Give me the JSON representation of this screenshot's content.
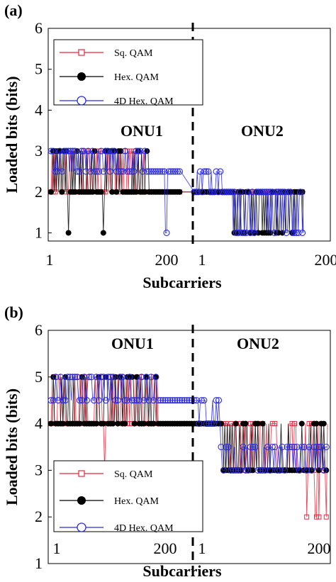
{
  "chart_data": [
    {
      "type": "line",
      "panel_label": "(a)",
      "xlabel": "Subcarriers",
      "ylabel": "Loaded bits (bits)",
      "ylim": [
        0.8,
        6
      ],
      "yticks": [
        "1",
        "2",
        "3",
        "4",
        "5",
        "6"
      ],
      "xticks_left": [
        "1",
        "200"
      ],
      "xticks_right": [
        "1",
        "200"
      ],
      "region_labels": [
        "ONU1",
        "ONU2"
      ],
      "legend": {
        "position": "top-left",
        "entries": [
          "Sq. QAM",
          "Hex. QAM",
          "4D Hex. QAM"
        ]
      },
      "series": [
        {
          "name": "Sq. QAM",
          "color": "#e8283c",
          "marker": "open-square",
          "onu1_level": 2,
          "onu1_peak": 3,
          "onu2_level": 2
        },
        {
          "name": "Hex. QAM",
          "color": "#000000",
          "marker": "filled-circle",
          "onu1_level": 2,
          "onu1_peak": 3,
          "onu2_level": 2,
          "onu2_drop": 1
        },
        {
          "name": "4D Hex. QAM",
          "color": "#2a2ae0",
          "marker": "open-circle",
          "onu1_level": 2.5,
          "onu1_peak": 3,
          "onu2_level": 2,
          "onu2_drop": 1
        }
      ]
    },
    {
      "type": "line",
      "panel_label": "(b)",
      "xlabel": "Subcarriers",
      "ylabel": "Loaded bits (bits)",
      "ylim": [
        1,
        6
      ],
      "yticks": [
        "1",
        "2",
        "3",
        "4",
        "5",
        "6"
      ],
      "xticks_left": [
        "1",
        "200"
      ],
      "xticks_right": [
        "1",
        "200"
      ],
      "region_labels": [
        "ONU1",
        "ONU2"
      ],
      "legend": {
        "position": "bottom-left",
        "entries": [
          "Sq. QAM",
          "Hex. QAM",
          "4D Hex. QAM"
        ]
      },
      "series": [
        {
          "name": "Sq. QAM",
          "color": "#e8283c",
          "marker": "open-square",
          "onu1_level": 4,
          "onu1_peak": 5,
          "onu2_level": 3,
          "onu2_drop": 2
        },
        {
          "name": "Hex. QAM",
          "color": "#000000",
          "marker": "filled-circle",
          "onu1_level": 4,
          "onu1_peak": 5,
          "onu2_level": 3
        },
        {
          "name": "4D Hex. QAM",
          "color": "#2a2ae0",
          "marker": "open-circle",
          "onu1_level": 4.5,
          "onu1_peak": 5,
          "onu2_level": 3.5
        }
      ]
    }
  ]
}
